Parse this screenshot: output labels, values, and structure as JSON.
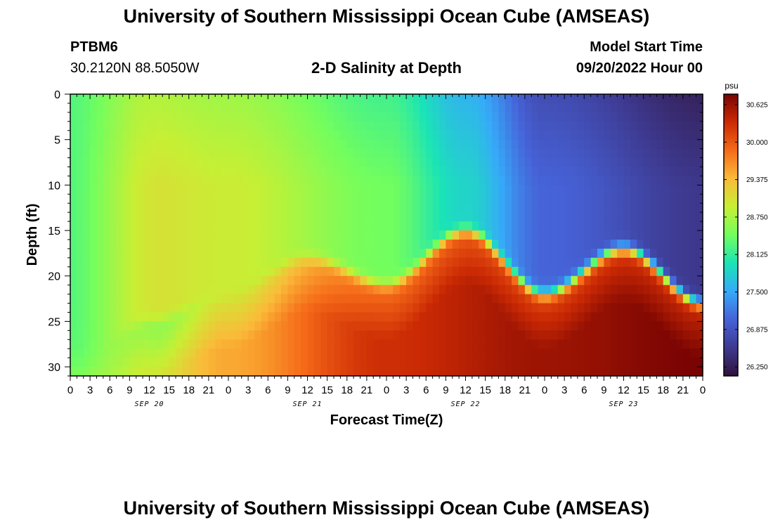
{
  "header": {
    "title": "University of Southern Mississippi Ocean Cube (AMSEAS)",
    "station": "PTBM6",
    "coords": "30.2120N  88.5050W",
    "product": "2-D Salinity at Depth",
    "start_label": "Model Start Time",
    "start_value": "09/20/2022 Hour 00"
  },
  "footer": {
    "title": "University of Southern Mississippi Ocean Cube (AMSEAS)"
  },
  "chart_data": {
    "type": "heatmap",
    "title": "2-D Salinity at Depth",
    "xlabel": "Forecast Time(Z)",
    "ylabel": "Depth (ft)",
    "x_ticks": [
      "0",
      "3",
      "6",
      "9",
      "12",
      "15",
      "18",
      "21",
      "0",
      "3",
      "6",
      "9",
      "12",
      "15",
      "18",
      "21",
      "0",
      "3",
      "6",
      "9",
      "12",
      "15",
      "18",
      "21",
      "0",
      "3",
      "6",
      "9",
      "12",
      "15",
      "18",
      "21",
      "0"
    ],
    "date_labels": [
      "SEP 20",
      "SEP 21",
      "SEP 22",
      "SEP 23"
    ],
    "y_ticks": [
      0,
      5,
      10,
      15,
      20,
      25,
      30
    ],
    "ylim": [
      0,
      31
    ],
    "xlim_hours": [
      0,
      96
    ],
    "colorbar": {
      "unit": "psu",
      "ticks": [
        "30.625",
        "30.000",
        "29.375",
        "28.750",
        "28.125",
        "27.500",
        "26.875",
        "26.250"
      ],
      "range": [
        26.1,
        30.8
      ],
      "colors": [
        "#30123b",
        "#3e3a91",
        "#4662d7",
        "#36aaf9",
        "#1ae4b6",
        "#72fe5e",
        "#c7ef34",
        "#fabb39",
        "#f66b19",
        "#cb2a04",
        "#7a0403"
      ]
    },
    "interface_depth_ft": [
      {
        "hour": 0,
        "depth": 31
      },
      {
        "hour": 12,
        "depth": 25
      },
      {
        "hour": 24,
        "depth": 22
      },
      {
        "hour": 36,
        "depth": 18
      },
      {
        "hour": 48,
        "depth": 21
      },
      {
        "hour": 60,
        "depth": 15
      },
      {
        "hour": 72,
        "depth": 22
      },
      {
        "hour": 84,
        "depth": 17
      },
      {
        "hour": 96,
        "depth": 23
      }
    ],
    "surface_salinity_psu": [
      {
        "hour": 0,
        "value": 28.3
      },
      {
        "hour": 12,
        "value": 28.8
      },
      {
        "hour": 24,
        "value": 28.7
      },
      {
        "hour": 48,
        "value": 28.2
      },
      {
        "hour": 60,
        "value": 27.6
      },
      {
        "hour": 72,
        "value": 26.8
      },
      {
        "hour": 96,
        "value": 26.3
      }
    ],
    "bottom_salinity_psu": [
      {
        "hour": 0,
        "value": 28.7
      },
      {
        "hour": 12,
        "value": 29.0
      },
      {
        "hour": 24,
        "value": 29.5
      },
      {
        "hour": 48,
        "value": 30.3
      },
      {
        "hour": 72,
        "value": 30.6
      },
      {
        "hour": 96,
        "value": 30.8
      }
    ]
  }
}
